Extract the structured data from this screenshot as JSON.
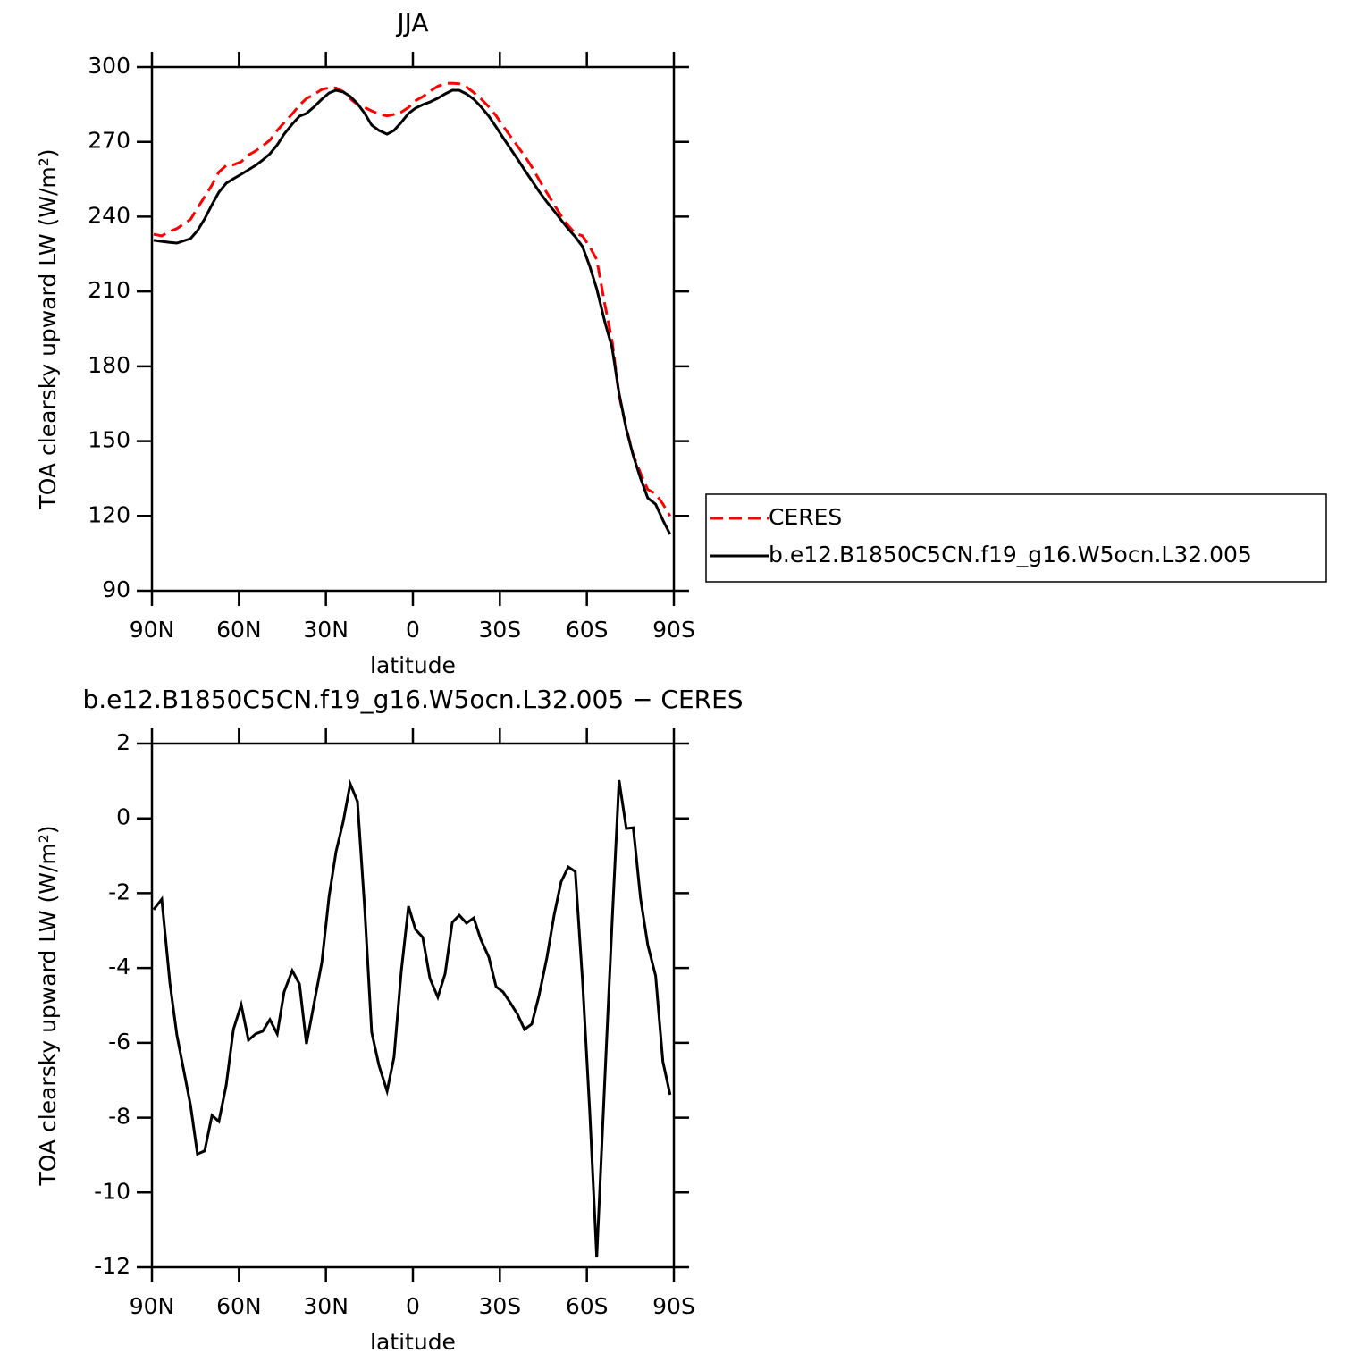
{
  "chart_data": [
    {
      "type": "line",
      "title": "JJA",
      "xlabel": "latitude",
      "ylabel": "TOA clearsky upward LW (W/m²)",
      "x": [
        89.4,
        86.6,
        83.8,
        81.4,
        76.7,
        74.3,
        71.8,
        69.3,
        66.9,
        64.4,
        61.9,
        59.2,
        56.7,
        54.2,
        51.8,
        49.3,
        46.8,
        44.4,
        41.6,
        39.1,
        36.7,
        34.2,
        31.4,
        28.9,
        26.5,
        24.0,
        21.6,
        19.1,
        16.6,
        14.2,
        11.7,
        8.9,
        6.5,
        4.0,
        1.5,
        -0.9,
        -3.4,
        -5.9,
        -8.6,
        -11.1,
        -13.6,
        -16.0,
        -18.5,
        -21.0,
        -23.4,
        -26.2,
        -28.7,
        -31.1,
        -33.6,
        -36.1,
        -38.5,
        -41.0,
        -43.5,
        -46.2,
        -48.7,
        -51.1,
        -53.6,
        -56.0,
        -58.5,
        -61.0,
        -63.4,
        -66.2,
        -68.7,
        -71.1,
        -73.6,
        -76.0,
        -78.5,
        -81.0,
        -83.7,
        -86.2,
        -88.7
      ],
      "series": [
        {
          "name": "CERES",
          "color": "#ff0000",
          "linestyle": "dashed",
          "values": [
            232.9,
            232.3,
            234.1,
            235.2,
            238.9,
            243.4,
            248.0,
            252.7,
            257.9,
            260.5,
            260.8,
            262.0,
            264.7,
            266.4,
            268.4,
            270.6,
            274.6,
            277.7,
            281.2,
            284.7,
            287.4,
            288.9,
            291.0,
            291.7,
            291.6,
            290.1,
            287.3,
            284.9,
            283.8,
            282.4,
            281.2,
            280.4,
            281.0,
            281.9,
            283.8,
            286.5,
            288.1,
            290.3,
            292.3,
            293.4,
            293.5,
            293.3,
            292.0,
            289.8,
            287.4,
            284.0,
            280.5,
            276.3,
            272.3,
            268.3,
            264.4,
            260.0,
            254.9,
            249.6,
            244.9,
            240.4,
            236.4,
            233.3,
            232.3,
            227.9,
            222.8,
            204.8,
            190.3,
            168.2,
            155.1,
            144.4,
            137.2,
            130.6,
            128.9,
            124.8,
            120.0
          ]
        },
        {
          "name": "b.e12.B1850C5CN.f19_g16.W5ocn.L32.005",
          "color": "#000000",
          "linestyle": "solid",
          "values": [
            230.5,
            230.1,
            229.7,
            229.4,
            231.2,
            234.4,
            239.1,
            244.8,
            249.8,
            253.4,
            255.2,
            257.0,
            258.8,
            260.6,
            262.7,
            265.2,
            268.8,
            273.1,
            277.1,
            280.3,
            281.4,
            283.9,
            287.1,
            289.6,
            290.7,
            290.0,
            288.2,
            285.3,
            281.4,
            276.7,
            274.6,
            273.1,
            274.6,
            277.8,
            281.4,
            283.5,
            284.9,
            286.0,
            287.5,
            289.2,
            290.7,
            290.7,
            289.2,
            287.1,
            284.2,
            280.3,
            276.0,
            271.7,
            267.4,
            263.1,
            258.8,
            254.5,
            250.2,
            245.9,
            242.3,
            238.7,
            235.1,
            231.9,
            228.0,
            220.1,
            211.1,
            197.8,
            187.5,
            169.2,
            154.8,
            144.1,
            135.1,
            127.2,
            124.7,
            118.3,
            112.6
          ]
        }
      ],
      "xlim": [
        90,
        -90
      ],
      "xticks": [
        {
          "value": 90,
          "label": "90N"
        },
        {
          "value": 60,
          "label": "60N"
        },
        {
          "value": 30,
          "label": "30N"
        },
        0,
        {
          "value": -30,
          "label": "30S"
        },
        {
          "value": -60,
          "label": "60S"
        },
        {
          "value": -90,
          "label": "90S"
        }
      ],
      "ylim": [
        90,
        300
      ],
      "yticks": [
        90,
        120,
        150,
        180,
        210,
        240,
        270,
        300
      ],
      "legend": "outside-right"
    },
    {
      "type": "line",
      "title": "b.e12.B1850C5CN.f19_g16.W5ocn.L32.005 − CERES",
      "xlabel": "latitude",
      "ylabel": "TOA clearsky upward LW (W/m²)",
      "x": [
        89.4,
        86.6,
        83.8,
        81.4,
        76.7,
        74.3,
        71.8,
        69.3,
        66.9,
        64.4,
        61.9,
        59.2,
        56.7,
        54.2,
        51.8,
        49.3,
        46.8,
        44.4,
        41.6,
        39.1,
        36.7,
        34.2,
        31.4,
        28.9,
        26.5,
        24.0,
        21.6,
        19.1,
        16.6,
        14.2,
        11.7,
        8.9,
        6.5,
        4.0,
        1.5,
        -0.9,
        -3.4,
        -5.9,
        -8.6,
        -11.1,
        -13.6,
        -16.0,
        -18.5,
        -21.0,
        -23.4,
        -26.2,
        -28.7,
        -31.1,
        -33.6,
        -36.1,
        -38.5,
        -41.0,
        -43.5,
        -46.2,
        -48.7,
        -51.1,
        -53.6,
        -56.0,
        -58.5,
        -61.0,
        -63.4,
        -66.2,
        -68.7,
        -71.1,
        -73.6,
        -76.0,
        -78.5,
        -81.0,
        -83.7,
        -86.2,
        -88.7
      ],
      "color": "#000000",
      "values": [
        -2.44,
        -2.16,
        -4.4,
        -5.79,
        -7.67,
        -8.97,
        -8.89,
        -7.94,
        -8.1,
        -7.13,
        -5.64,
        -4.98,
        -5.93,
        -5.76,
        -5.69,
        -5.38,
        -5.76,
        -4.64,
        -4.07,
        -4.43,
        -6.03,
        -5.0,
        -3.85,
        -2.09,
        -0.89,
        -0.08,
        0.92,
        0.45,
        -2.42,
        -5.72,
        -6.6,
        -7.29,
        -6.38,
        -4.09,
        -2.35,
        -2.97,
        -3.18,
        -4.28,
        -4.78,
        -4.16,
        -2.78,
        -2.59,
        -2.8,
        -2.66,
        -3.23,
        -3.71,
        -4.5,
        -4.64,
        -4.93,
        -5.24,
        -5.64,
        -5.5,
        -4.74,
        -3.73,
        -2.59,
        -1.7,
        -1.3,
        -1.42,
        -4.33,
        -7.84,
        -11.74,
        -6.96,
        -2.78,
        1.02,
        -0.27,
        -0.25,
        -2.13,
        -3.38,
        -4.21,
        -6.5,
        -7.39
      ],
      "xlim": [
        90,
        -90
      ],
      "xticks": [
        {
          "value": 90,
          "label": "90N"
        },
        {
          "value": 60,
          "label": "60N"
        },
        {
          "value": 30,
          "label": "30N"
        },
        0,
        {
          "value": -30,
          "label": "30S"
        },
        {
          "value": -60,
          "label": "60S"
        },
        {
          "value": -90,
          "label": "90S"
        }
      ],
      "ylim": [
        -12,
        2
      ],
      "yticks": [
        -12,
        -10,
        -8,
        -6,
        -4,
        -2,
        0,
        2
      ]
    }
  ]
}
